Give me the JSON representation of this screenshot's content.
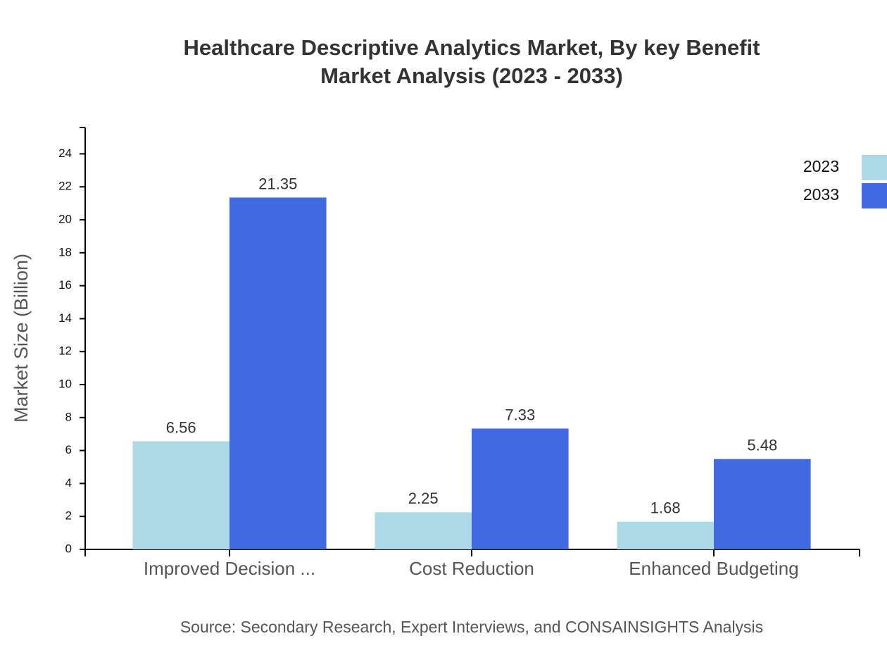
{
  "chart_data": {
    "type": "bar",
    "title": [
      "Healthcare Descriptive Analytics Market, By key Benefit",
      "Market Analysis (2023 - 2033)"
    ],
    "y_label": "Market Size (Billion)",
    "source": "Source: Secondary Research, Expert Interviews, and CONSAINSIGHTS Analysis",
    "categories": [
      "Improved Decision ...",
      "Cost Reduction",
      "Enhanced Budgeting"
    ],
    "series": [
      {
        "name": "2023",
        "color": "#add8e6",
        "values": [
          6.56,
          2.25,
          1.68
        ]
      },
      {
        "name": "2033",
        "color": "#4169e1",
        "values": [
          21.35,
          7.33,
          5.48
        ]
      }
    ],
    "ylim": [
      0,
      25.6
    ],
    "yticks": [
      0,
      2,
      4,
      6,
      8,
      10,
      12,
      14,
      16,
      18,
      20,
      22,
      24
    ],
    "legend": "top-right"
  }
}
